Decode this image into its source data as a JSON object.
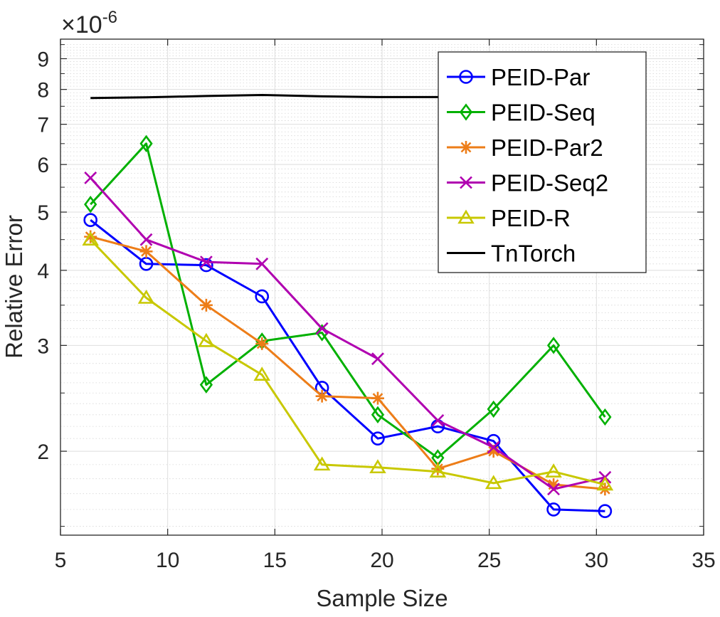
{
  "chart_data": {
    "type": "line",
    "title": "",
    "xlabel": "Sample Size",
    "ylabel": "Relative Error",
    "yscale": "log",
    "y_multiplier": "×10",
    "y_multiplier_exponent": "-6",
    "xlim": [
      5,
      35
    ],
    "ylim": [
      1.45,
      9.7
    ],
    "x_ticks": [
      5,
      10,
      15,
      20,
      25,
      30,
      35
    ],
    "y_ticks": [
      2,
      3,
      4,
      5,
      6,
      7,
      8,
      9
    ],
    "grid": true,
    "legend_position": "top-right",
    "x": [
      6.4,
      9.0,
      11.8,
      14.4,
      17.2,
      19.8,
      22.6,
      25.2,
      28.0,
      30.4
    ],
    "series": [
      {
        "name": "PEID-Par",
        "color": "#0000ff",
        "marker": "circle",
        "values": [
          4.85,
          4.1,
          4.08,
          3.62,
          2.55,
          2.1,
          2.2,
          2.08,
          1.6,
          1.59
        ]
      },
      {
        "name": "PEID-Seq",
        "color": "#00b000",
        "marker": "diamond",
        "values": [
          5.15,
          6.5,
          2.58,
          3.05,
          3.15,
          2.3,
          1.95,
          2.35,
          3.0,
          2.28
        ]
      },
      {
        "name": "PEID-Par2",
        "color": "#ed7d18",
        "marker": "asterisk",
        "values": [
          4.55,
          4.3,
          3.5,
          3.02,
          2.47,
          2.45,
          1.87,
          2.0,
          1.76,
          1.73
        ]
      },
      {
        "name": "PEID-Seq2",
        "color": "#b000b0",
        "marker": "x",
        "values": [
          5.7,
          4.5,
          4.13,
          4.1,
          3.2,
          2.85,
          2.25,
          2.03,
          1.73,
          1.81
        ]
      },
      {
        "name": "PEID-R",
        "color": "#c8c800",
        "marker": "triangle",
        "values": [
          4.5,
          3.6,
          3.05,
          2.68,
          1.9,
          1.88,
          1.85,
          1.77,
          1.85,
          1.76
        ]
      },
      {
        "name": "TnTorch",
        "color": "#000000",
        "marker": "none",
        "values": [
          7.74,
          7.76,
          7.8,
          7.83,
          7.79,
          7.77,
          7.77,
          null,
          null,
          null
        ]
      }
    ]
  }
}
